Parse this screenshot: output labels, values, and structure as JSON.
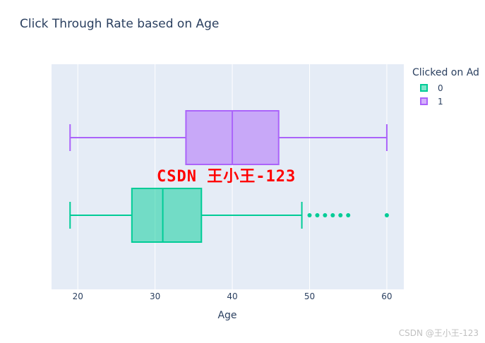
{
  "page": {
    "watermark_center": "CSDN 王小王-123",
    "watermark_corner": "CSDN @王小王-123"
  },
  "chart_data": {
    "type": "box",
    "title": "Click Through Rate based on Age",
    "xlabel": "Age",
    "ylabel": "",
    "xlim": [
      16.6,
      62.2
    ],
    "xticks": [
      20,
      30,
      40,
      50,
      60
    ],
    "grid": true,
    "orientation": "horizontal",
    "legend": {
      "title": "Clicked on Ad",
      "position": "top-right"
    },
    "series": [
      {
        "name": "0",
        "color": "#00cc96",
        "min": 19,
        "q1": 27,
        "median": 31,
        "q3": 36,
        "upper_whisker": 49,
        "outliers": [
          50,
          51,
          52,
          53,
          54,
          55,
          60
        ]
      },
      {
        "name": "1",
        "color": "#ab63fa",
        "min": 19,
        "q1": 34,
        "median": 40,
        "q3": 46,
        "upper_whisker": 60,
        "outliers": []
      }
    ]
  }
}
